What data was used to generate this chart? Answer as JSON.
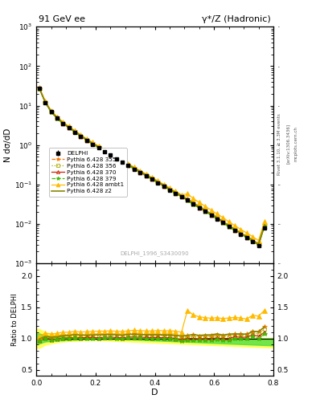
{
  "title_left": "91 GeV ee",
  "title_right": "γ*/Z (Hadronic)",
  "ylabel_main": "N dσ/dD",
  "ylabel_ratio": "Ratio to DELPHI",
  "xlabel": "D",
  "rivet_label": "Rivet 3.1.10, ≥ 3.3M events",
  "arxiv_label": "[arXiv:1306.3436]",
  "mcplots_label": "mcplots.cern.ch",
  "ref_label": "DELPHI_1996_S3430090",
  "xlim": [
    0.0,
    0.8
  ],
  "ylim_main": [
    0.001,
    1000.0
  ],
  "ylim_ratio": [
    0.4,
    2.2
  ],
  "delphi_x": [
    0.01,
    0.03,
    0.05,
    0.07,
    0.09,
    0.11,
    0.13,
    0.15,
    0.17,
    0.19,
    0.21,
    0.23,
    0.25,
    0.27,
    0.29,
    0.31,
    0.33,
    0.35,
    0.37,
    0.39,
    0.41,
    0.43,
    0.45,
    0.47,
    0.49,
    0.51,
    0.53,
    0.55,
    0.57,
    0.59,
    0.61,
    0.63,
    0.65,
    0.67,
    0.69,
    0.71,
    0.73,
    0.75,
    0.77
  ],
  "delphi_y": [
    28.0,
    12.0,
    7.0,
    4.8,
    3.5,
    2.7,
    2.1,
    1.65,
    1.3,
    1.05,
    0.85,
    0.68,
    0.55,
    0.45,
    0.37,
    0.3,
    0.245,
    0.2,
    0.165,
    0.135,
    0.11,
    0.09,
    0.073,
    0.06,
    0.05,
    0.04,
    0.032,
    0.026,
    0.021,
    0.017,
    0.0135,
    0.011,
    0.0085,
    0.0068,
    0.0055,
    0.0045,
    0.0035,
    0.0028,
    0.008
  ],
  "delphi_yerr": [
    1.5,
    0.5,
    0.3,
    0.2,
    0.15,
    0.1,
    0.08,
    0.06,
    0.05,
    0.04,
    0.03,
    0.025,
    0.02,
    0.016,
    0.013,
    0.011,
    0.009,
    0.007,
    0.006,
    0.005,
    0.004,
    0.003,
    0.0025,
    0.002,
    0.0018,
    0.0015,
    0.0012,
    0.001,
    0.0008,
    0.0007,
    0.0006,
    0.0005,
    0.0004,
    0.00035,
    0.0003,
    0.00025,
    0.0002,
    0.00018,
    0.0006
  ],
  "mc_styles": [
    {
      "color": "#ff7700",
      "linestyle": "--",
      "marker": "*",
      "mfc": "#ff7700",
      "ms": 4.0,
      "lw": 0.9
    },
    {
      "color": "#aaaa00",
      "linestyle": ":",
      "marker": "s",
      "mfc": "none",
      "ms": 3.5,
      "lw": 0.9
    },
    {
      "color": "#cc2200",
      "linestyle": "-",
      "marker": "^",
      "mfc": "none",
      "ms": 3.5,
      "lw": 0.9
    },
    {
      "color": "#44bb00",
      "linestyle": "--",
      "marker": "*",
      "mfc": "#44bb00",
      "ms": 4.0,
      "lw": 0.9
    },
    {
      "color": "#ffbb00",
      "linestyle": "-",
      "marker": "^",
      "mfc": "#ffbb00",
      "ms": 4.0,
      "lw": 0.9
    },
    {
      "color": "#888800",
      "linestyle": "-",
      "marker": null,
      "mfc": "#888800",
      "ms": 0,
      "lw": 1.2
    }
  ],
  "mc_labels": [
    "Pythia 6.428 355",
    "Pythia 6.428 356",
    "Pythia 6.428 370",
    "Pythia 6.428 379",
    "Pythia 6.428 ambt1",
    "Pythia 6.428 z2"
  ],
  "mc_x": [
    0.01,
    0.03,
    0.05,
    0.07,
    0.09,
    0.11,
    0.13,
    0.15,
    0.17,
    0.19,
    0.21,
    0.23,
    0.25,
    0.27,
    0.29,
    0.31,
    0.33,
    0.35,
    0.37,
    0.39,
    0.41,
    0.43,
    0.45,
    0.47,
    0.49,
    0.51,
    0.53,
    0.55,
    0.57,
    0.59,
    0.61,
    0.63,
    0.65,
    0.67,
    0.69,
    0.71,
    0.73,
    0.75,
    0.77
  ],
  "mc_data": [
    [
      27.0,
      12.5,
      7.2,
      5.0,
      3.7,
      2.85,
      2.25,
      1.75,
      1.38,
      1.12,
      0.91,
      0.73,
      0.59,
      0.48,
      0.39,
      0.32,
      0.262,
      0.213,
      0.175,
      0.143,
      0.117,
      0.095,
      0.077,
      0.063,
      0.052,
      0.042,
      0.034,
      0.027,
      0.022,
      0.0178,
      0.0143,
      0.0115,
      0.009,
      0.0073,
      0.0059,
      0.0048,
      0.0039,
      0.0031,
      0.0095
    ],
    [
      27.5,
      12.3,
      7.1,
      4.9,
      3.65,
      2.82,
      2.22,
      1.73,
      1.36,
      1.1,
      0.89,
      0.715,
      0.58,
      0.47,
      0.385,
      0.315,
      0.258,
      0.21,
      0.173,
      0.141,
      0.115,
      0.094,
      0.076,
      0.062,
      0.051,
      0.041,
      0.033,
      0.0265,
      0.0215,
      0.0175,
      0.014,
      0.0113,
      0.0088,
      0.0072,
      0.0058,
      0.0047,
      0.0038,
      0.003,
      0.0092
    ],
    [
      27.2,
      12.1,
      6.9,
      4.75,
      3.52,
      2.72,
      2.14,
      1.67,
      1.32,
      1.07,
      0.86,
      0.693,
      0.562,
      0.457,
      0.374,
      0.307,
      0.251,
      0.204,
      0.168,
      0.137,
      0.112,
      0.091,
      0.074,
      0.06,
      0.049,
      0.04,
      0.032,
      0.0258,
      0.021,
      0.017,
      0.0136,
      0.011,
      0.0085,
      0.007,
      0.0056,
      0.0046,
      0.0037,
      0.0029,
      0.0088
    ],
    [
      26.8,
      11.9,
      6.8,
      4.7,
      3.48,
      2.7,
      2.12,
      1.65,
      1.3,
      1.05,
      0.85,
      0.682,
      0.554,
      0.45,
      0.368,
      0.302,
      0.247,
      0.201,
      0.165,
      0.135,
      0.11,
      0.09,
      0.073,
      0.059,
      0.048,
      0.039,
      0.031,
      0.0252,
      0.0205,
      0.0166,
      0.0133,
      0.0107,
      0.0083,
      0.0068,
      0.0055,
      0.0045,
      0.0036,
      0.0028,
      0.0086
    ],
    [
      29.0,
      13.0,
      7.5,
      5.2,
      3.85,
      2.97,
      2.34,
      1.82,
      1.44,
      1.17,
      0.95,
      0.76,
      0.617,
      0.502,
      0.411,
      0.337,
      0.277,
      0.225,
      0.185,
      0.151,
      0.124,
      0.101,
      0.082,
      0.067,
      0.055,
      0.058,
      0.044,
      0.035,
      0.028,
      0.0225,
      0.018,
      0.0145,
      0.0113,
      0.0091,
      0.0073,
      0.0059,
      0.0048,
      0.0038,
      0.0116
    ],
    [
      27.8,
      12.4,
      7.15,
      4.93,
      3.66,
      2.83,
      2.23,
      1.74,
      1.37,
      1.11,
      0.9,
      0.722,
      0.586,
      0.477,
      0.39,
      0.32,
      0.262,
      0.213,
      0.175,
      0.143,
      0.117,
      0.095,
      0.077,
      0.063,
      0.052,
      0.042,
      0.034,
      0.0273,
      0.0222,
      0.018,
      0.0145,
      0.0116,
      0.0091,
      0.0073,
      0.0059,
      0.0048,
      0.0039,
      0.0031,
      0.0095
    ]
  ],
  "band_x": [
    0.0,
    0.01,
    0.03,
    0.05,
    0.07,
    0.09,
    0.11,
    0.13,
    0.15,
    0.17,
    0.19,
    0.21,
    0.23,
    0.25,
    0.27,
    0.29,
    0.31,
    0.33,
    0.35,
    0.37,
    0.39,
    0.41,
    0.43,
    0.45,
    0.47,
    0.49,
    0.51,
    0.53,
    0.55,
    0.57,
    0.59,
    0.61,
    0.63,
    0.65,
    0.67,
    0.69,
    0.71,
    0.73,
    0.75,
    0.77,
    0.8
  ],
  "green_up": [
    1.08,
    1.08,
    1.05,
    1.04,
    1.03,
    1.03,
    1.02,
    1.02,
    1.015,
    1.01,
    1.01,
    1.01,
    1.01,
    1.01,
    1.008,
    1.006,
    1.005,
    1.004,
    1.004,
    1.003,
    1.003,
    1.003,
    1.002,
    1.002,
    1.002,
    1.002,
    1.002,
    1.002,
    1.002,
    1.002,
    1.002,
    1.002,
    1.002,
    1.002,
    1.002,
    1.002,
    1.002,
    1.002,
    1.002,
    1.002,
    1.002
  ],
  "green_lo": [
    0.92,
    0.92,
    0.95,
    0.96,
    0.97,
    0.97,
    0.98,
    0.98,
    0.985,
    0.99,
    0.99,
    0.99,
    0.99,
    0.99,
    0.992,
    0.988,
    0.985,
    0.982,
    0.978,
    0.974,
    0.97,
    0.966,
    0.962,
    0.958,
    0.954,
    0.95,
    0.946,
    0.942,
    0.938,
    0.934,
    0.93,
    0.926,
    0.922,
    0.918,
    0.914,
    0.91,
    0.906,
    0.902,
    0.898,
    0.894,
    0.89
  ],
  "yellow_up": [
    1.15,
    1.15,
    1.1,
    1.08,
    1.06,
    1.05,
    1.04,
    1.04,
    1.03,
    1.03,
    1.025,
    1.022,
    1.02,
    1.018,
    1.016,
    1.015,
    1.014,
    1.013,
    1.012,
    1.012,
    1.011,
    1.011,
    1.01,
    1.01,
    1.01,
    1.01,
    1.01,
    1.01,
    1.01,
    1.01,
    1.01,
    1.01,
    1.01,
    1.01,
    1.01,
    1.01,
    1.01,
    1.01,
    1.01,
    1.01,
    1.01
  ],
  "yellow_lo": [
    0.85,
    0.85,
    0.9,
    0.92,
    0.94,
    0.95,
    0.96,
    0.96,
    0.97,
    0.97,
    0.975,
    0.972,
    0.968,
    0.964,
    0.96,
    0.956,
    0.952,
    0.948,
    0.944,
    0.94,
    0.936,
    0.932,
    0.928,
    0.924,
    0.92,
    0.916,
    0.912,
    0.908,
    0.904,
    0.9,
    0.896,
    0.892,
    0.888,
    0.884,
    0.88,
    0.876,
    0.872,
    0.868,
    0.864,
    0.86,
    0.856
  ]
}
